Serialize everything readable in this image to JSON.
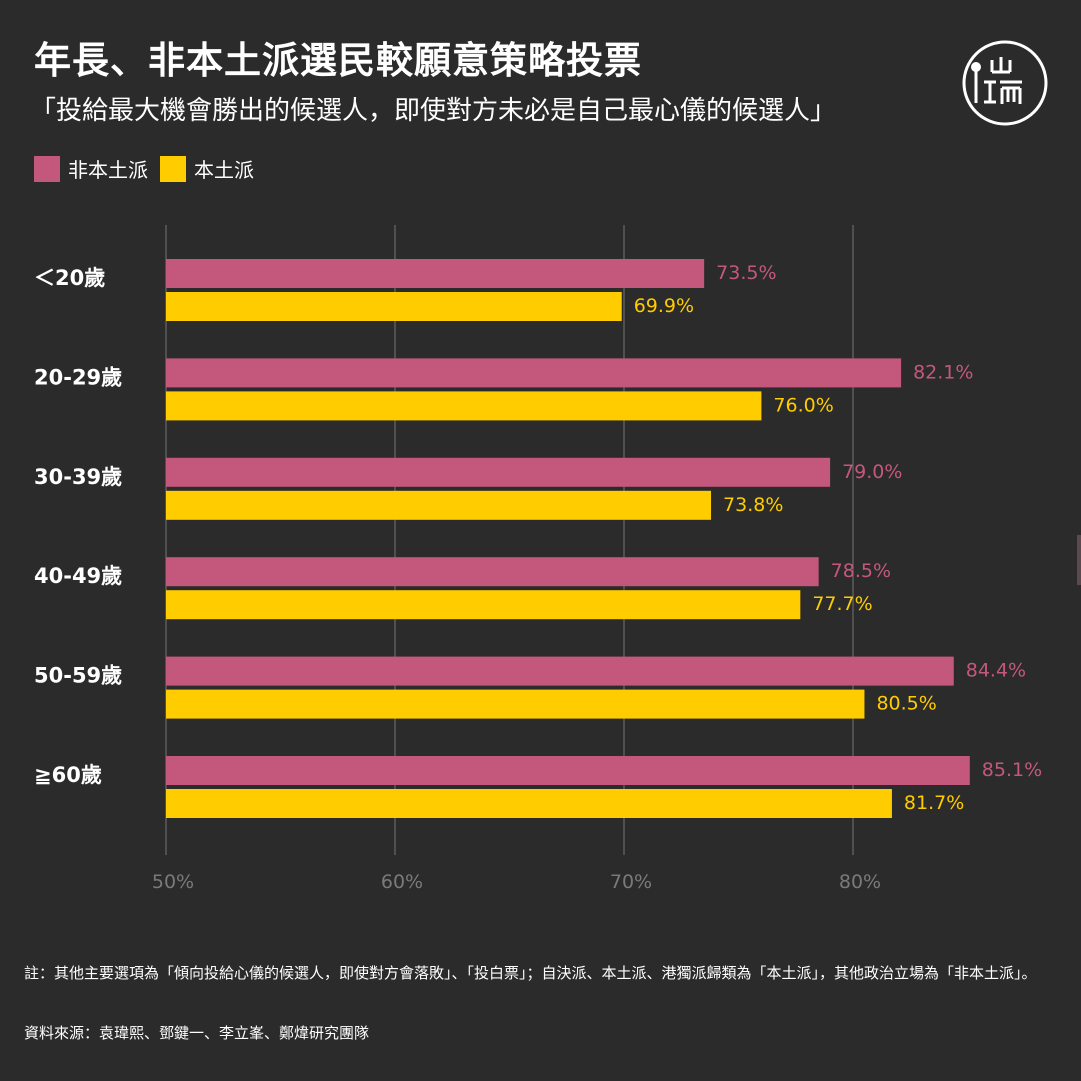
{
  "title": "年長、非本土派選民較願意策略投票",
  "subtitle": "「投給最大機會勝出的候選人，即使對方未必是自己最心儀的候選人」",
  "logo": {
    "icon": "initium-logo-icon",
    "glyphs": "山\n亚而"
  },
  "colors": {
    "non_localist": "#c4587c",
    "localist": "#ffcc00",
    "background": "#2b2b2b",
    "grid": "#6a6a6a"
  },
  "chart_data": {
    "type": "bar",
    "orientation": "horizontal",
    "categories": [
      "＜20歲",
      "20-29歲",
      "30-39歲",
      "40-49歲",
      "50-59歲",
      "≧60歲"
    ],
    "series": [
      {
        "name": "非本土派",
        "values": [
          73.5,
          82.1,
          79.0,
          78.5,
          84.4,
          85.1
        ],
        "labels": [
          "73.5%",
          "82.1%",
          "79.0%",
          "78.5%",
          "84.4%",
          "85.1%"
        ]
      },
      {
        "name": "本土派",
        "values": [
          69.9,
          76.0,
          73.8,
          77.7,
          80.5,
          81.7
        ],
        "labels": [
          "69.9%",
          "76.0%",
          "73.8%",
          "77.7%",
          "80.5%",
          "81.7%"
        ]
      }
    ],
    "xlim": [
      50,
      87
    ],
    "xticks": [
      50,
      60,
      70,
      80
    ],
    "xtick_labels": [
      "50%",
      "60%",
      "70%",
      "80%"
    ],
    "grid": true,
    "legend_position": "top-left"
  },
  "note": "註：其他主要選項為「傾向投給心儀的候選人，即使對方會落敗」、「投白票」；自決派、本土派、港獨派歸類為「本土派」，其他政治立場為「非本土派」。",
  "source": "資料來源：袁瑋熙、鄧鍵一、李立峯、鄭煒研究團隊"
}
